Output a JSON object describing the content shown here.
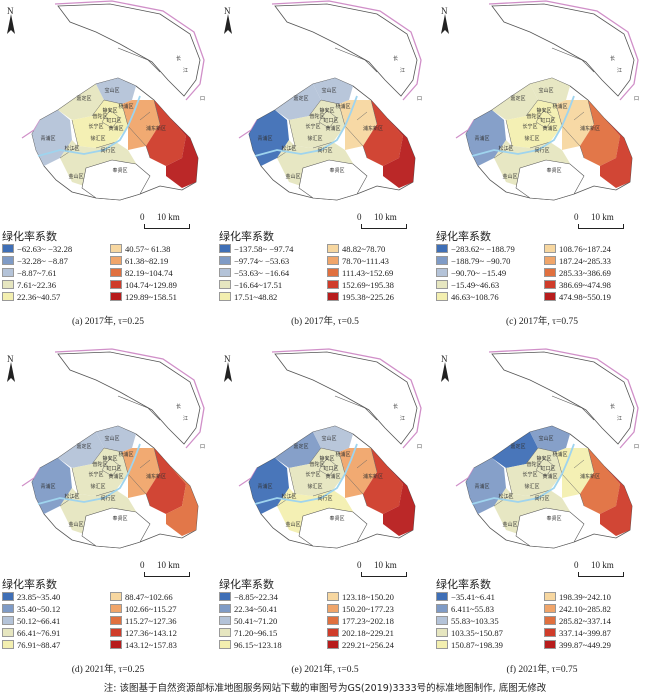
{
  "north_label": "N",
  "scale_zero": "0",
  "scale_text": "10 km",
  "legend_title": "绿化率系数",
  "river_label_1": "长",
  "river_label_2": "江",
  "river_label_3": "口",
  "district_labels": [
    "宝山区",
    "嘉定区",
    "普陀区",
    "长宁区",
    "静安区",
    "杨浦区",
    "虹口区",
    "黄浦区",
    "徐汇区",
    "闵行区",
    "青浦区",
    "松江区",
    "浦东新区",
    "奉贤区",
    "金山区"
  ],
  "footnote": "注: 该图基于自然资源部标准地图服务网站下载的审图号为GS(2019)3333号的标准地图制作, 底图无修改",
  "colors": {
    "c1": "#3f6fb6",
    "c2": "#7f9bc6",
    "c3": "#b4c3d8",
    "c4": "#e6e6c0",
    "c5": "#f3efb0",
    "c6": "#f7d7a0",
    "c7": "#f0a56a",
    "c8": "#e0703f",
    "c9": "#cf3c2a",
    "c10": "#b71c1c",
    "land": "#ffffff",
    "outline": "#555555",
    "border": "#d08fc8",
    "river": "#9fd4ee"
  },
  "panels": [
    {
      "caption": "(a) 2017年, τ=0.25",
      "legend": [
        "−62.63~ −32.28",
        "−32.28~ −8.87",
        "−8.87~7.61",
        "7.61~22.36",
        "22.36~40.57",
        "40.57~ 61.38",
        "61.38~82.19",
        "82.19~104.74",
        "104.74~129.89",
        "129.89~158.51"
      ]
    },
    {
      "caption": "(b) 2017年, τ=0.5",
      "legend": [
        "−137.58~ −97.74",
        "−97.74~ −53.63",
        "−53.63~ −16.64",
        "−16.64~17.51",
        "17.51~48.82",
        "48.82~78.70",
        "78.70~111.43",
        "111.43~152.69",
        "152.69~195.38",
        "195.38~225.26"
      ]
    },
    {
      "caption": "(c) 2017年, τ=0.75",
      "legend": [
        "−283.62~ −188.79",
        "−188.79~ −90.70",
        "−90.70~ −15.49",
        "−15.49~46.63",
        "46.63~108.76",
        "108.76~187.24",
        "187.24~285.33",
        "285.33~386.69",
        "386.69~474.98",
        "474.98~550.19"
      ]
    },
    {
      "caption": "(d) 2021年, τ=0.25",
      "legend": [
        "23.85~35.40",
        "35.40~50.12",
        "50.12~66.41",
        "66.41~76.91",
        "76.91~88.47",
        "88.47~102.66",
        "102.66~115.27",
        "115.27~127.36",
        "127.36~143.12",
        "143.12~157.83"
      ]
    },
    {
      "caption": "(e) 2021年, τ=0.5",
      "legend": [
        "−8.85~22.34",
        "22.34~50.41",
        "50.41~71.20",
        "71.20~96.15",
        "96.15~123.18",
        "123.18~150.20",
        "150.20~177.23",
        "177.23~202.18",
        "202.18~229.21",
        "229.21~256.24"
      ]
    },
    {
      "caption": "(f) 2021年, τ=0.75",
      "legend": [
        "−35.41~6.41",
        "6.411~55.83",
        "55.83~103.35",
        "103.35~150.87",
        "150.87~198.39",
        "198.39~242.10",
        "242.10~285.82",
        "285.82~337.14",
        "337.14~399.87",
        "399.87~449.29"
      ]
    }
  ]
}
